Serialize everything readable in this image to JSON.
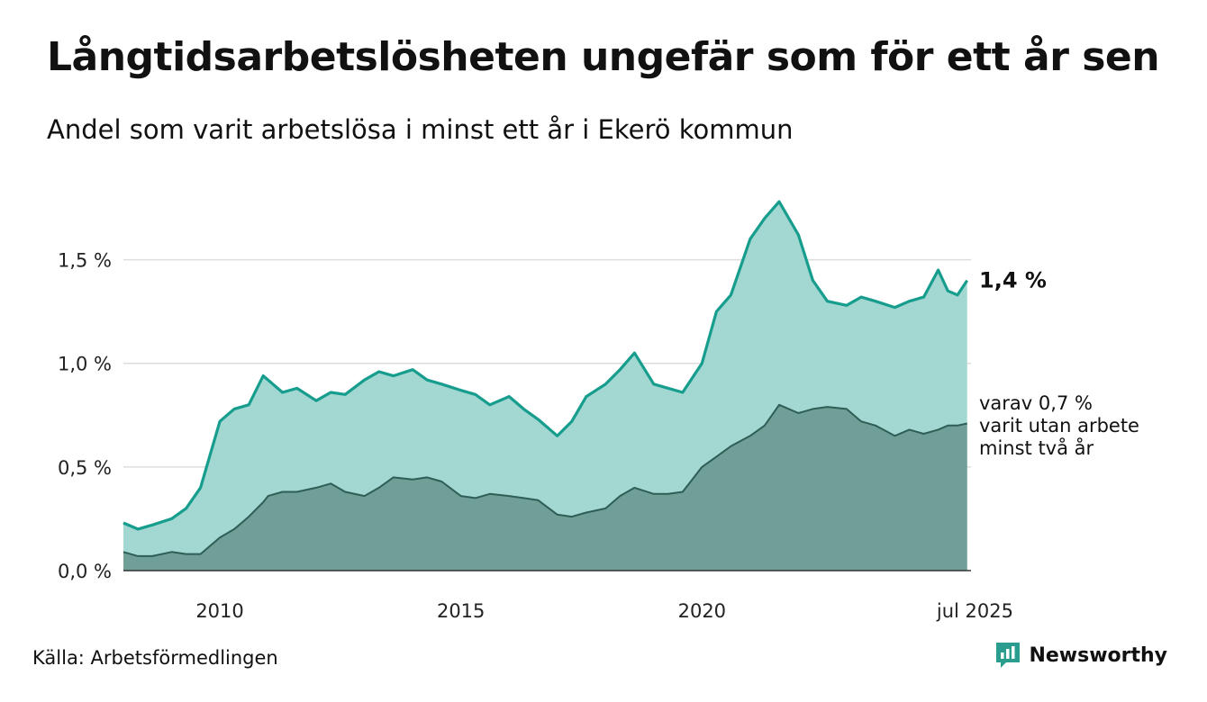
{
  "header": {
    "title": "Långtidsarbetslösheten ungefär som för ett år sen",
    "subtitle": "Andel som varit arbetslösa i minst ett år i Ekerö kommun"
  },
  "footer": {
    "source": "Källa: Arbetsförmedlingen",
    "brand": "Newsworthy"
  },
  "colors": {
    "upper_fill": "#a3d8d2",
    "upper_line": "#179d8d",
    "lower_fill": "#6f9f97",
    "lower_line": "#2e5e56",
    "grid": "#dddddd",
    "brand": "#2a9d8f"
  },
  "chart_data": {
    "type": "area",
    "title": "Långtidsarbetslösheten ungefär som för ett år sen",
    "subtitle": "Andel som varit arbetslösa i minst ett år i Ekerö kommun",
    "xlim": [
      2008.0,
      2025.58
    ],
    "ylim": [
      0,
      1.95
    ],
    "yticks": [
      0,
      0.5,
      1.0,
      1.5
    ],
    "ytick_labels": [
      "0,0 %",
      "0,5 %",
      "1,0 %",
      "1,5 %"
    ],
    "xticks": [
      2010,
      2015,
      2020,
      2025.5
    ],
    "xtick_labels": [
      "2010",
      "2015",
      "2020",
      "jul 2025"
    ],
    "grid": true,
    "legend": "none",
    "series": [
      {
        "x": [
          2008.0,
          2008.3,
          2008.6,
          2009.0,
          2009.3,
          2009.6,
          2010.0,
          2010.3,
          2010.6,
          2010.9,
          2011.0,
          2011.3,
          2011.6,
          2012.0,
          2012.3,
          2012.6,
          2013.0,
          2013.3,
          2013.6,
          2014.0,
          2014.3,
          2014.6,
          2015.0,
          2015.3,
          2015.6,
          2016.0,
          2016.3,
          2016.6,
          2017.0,
          2017.3,
          2017.6,
          2018.0,
          2018.3,
          2018.6,
          2019.0,
          2019.3,
          2019.6,
          2020.0,
          2020.3,
          2020.6,
          2021.0,
          2021.3,
          2021.6,
          2022.0,
          2022.3,
          2022.6,
          2023.0,
          2023.3,
          2023.6,
          2024.0,
          2024.3,
          2024.6,
          2024.9,
          2025.1,
          2025.3,
          2025.5
        ],
        "values": [
          0.23,
          0.2,
          0.22,
          0.25,
          0.3,
          0.4,
          0.72,
          0.78,
          0.8,
          0.94,
          0.92,
          0.86,
          0.88,
          0.82,
          0.86,
          0.85,
          0.92,
          0.96,
          0.94,
          0.97,
          0.92,
          0.9,
          0.87,
          0.85,
          0.8,
          0.84,
          0.78,
          0.73,
          0.65,
          0.72,
          0.84,
          0.9,
          0.97,
          1.05,
          0.9,
          0.88,
          0.86,
          1.0,
          1.25,
          1.33,
          1.6,
          1.7,
          1.78,
          1.62,
          1.4,
          1.3,
          1.28,
          1.32,
          1.3,
          1.27,
          1.3,
          1.32,
          1.45,
          1.35,
          1.33,
          1.4
        ]
      },
      {
        "name": "varav 0,7 % varit utan arbete minst två år",
        "x": [
          2008.0,
          2008.3,
          2008.6,
          2009.0,
          2009.3,
          2009.6,
          2010.0,
          2010.3,
          2010.6,
          2010.9,
          2011.0,
          2011.3,
          2011.6,
          2012.0,
          2012.3,
          2012.6,
          2013.0,
          2013.3,
          2013.6,
          2014.0,
          2014.3,
          2014.6,
          2015.0,
          2015.3,
          2015.6,
          2016.0,
          2016.3,
          2016.6,
          2017.0,
          2017.3,
          2017.6,
          2018.0,
          2018.3,
          2018.6,
          2019.0,
          2019.3,
          2019.6,
          2020.0,
          2020.3,
          2020.6,
          2021.0,
          2021.3,
          2021.6,
          2022.0,
          2022.3,
          2022.6,
          2023.0,
          2023.3,
          2023.6,
          2024.0,
          2024.3,
          2024.6,
          2024.9,
          2025.1,
          2025.3,
          2025.5
        ],
        "values": [
          0.09,
          0.07,
          0.07,
          0.09,
          0.08,
          0.08,
          0.16,
          0.2,
          0.26,
          0.33,
          0.36,
          0.38,
          0.38,
          0.4,
          0.42,
          0.38,
          0.36,
          0.4,
          0.45,
          0.44,
          0.45,
          0.43,
          0.36,
          0.35,
          0.37,
          0.36,
          0.35,
          0.34,
          0.27,
          0.26,
          0.28,
          0.3,
          0.36,
          0.4,
          0.37,
          0.37,
          0.38,
          0.5,
          0.55,
          0.6,
          0.65,
          0.7,
          0.8,
          0.76,
          0.78,
          0.79,
          0.78,
          0.72,
          0.7,
          0.65,
          0.68,
          0.66,
          0.68,
          0.7,
          0.7,
          0.71
        ]
      }
    ],
    "end_labels": {
      "upper": "1,4 %",
      "lower_lines": [
        "varav 0,7 %",
        "varit utan arbete",
        "minst två år"
      ]
    }
  }
}
